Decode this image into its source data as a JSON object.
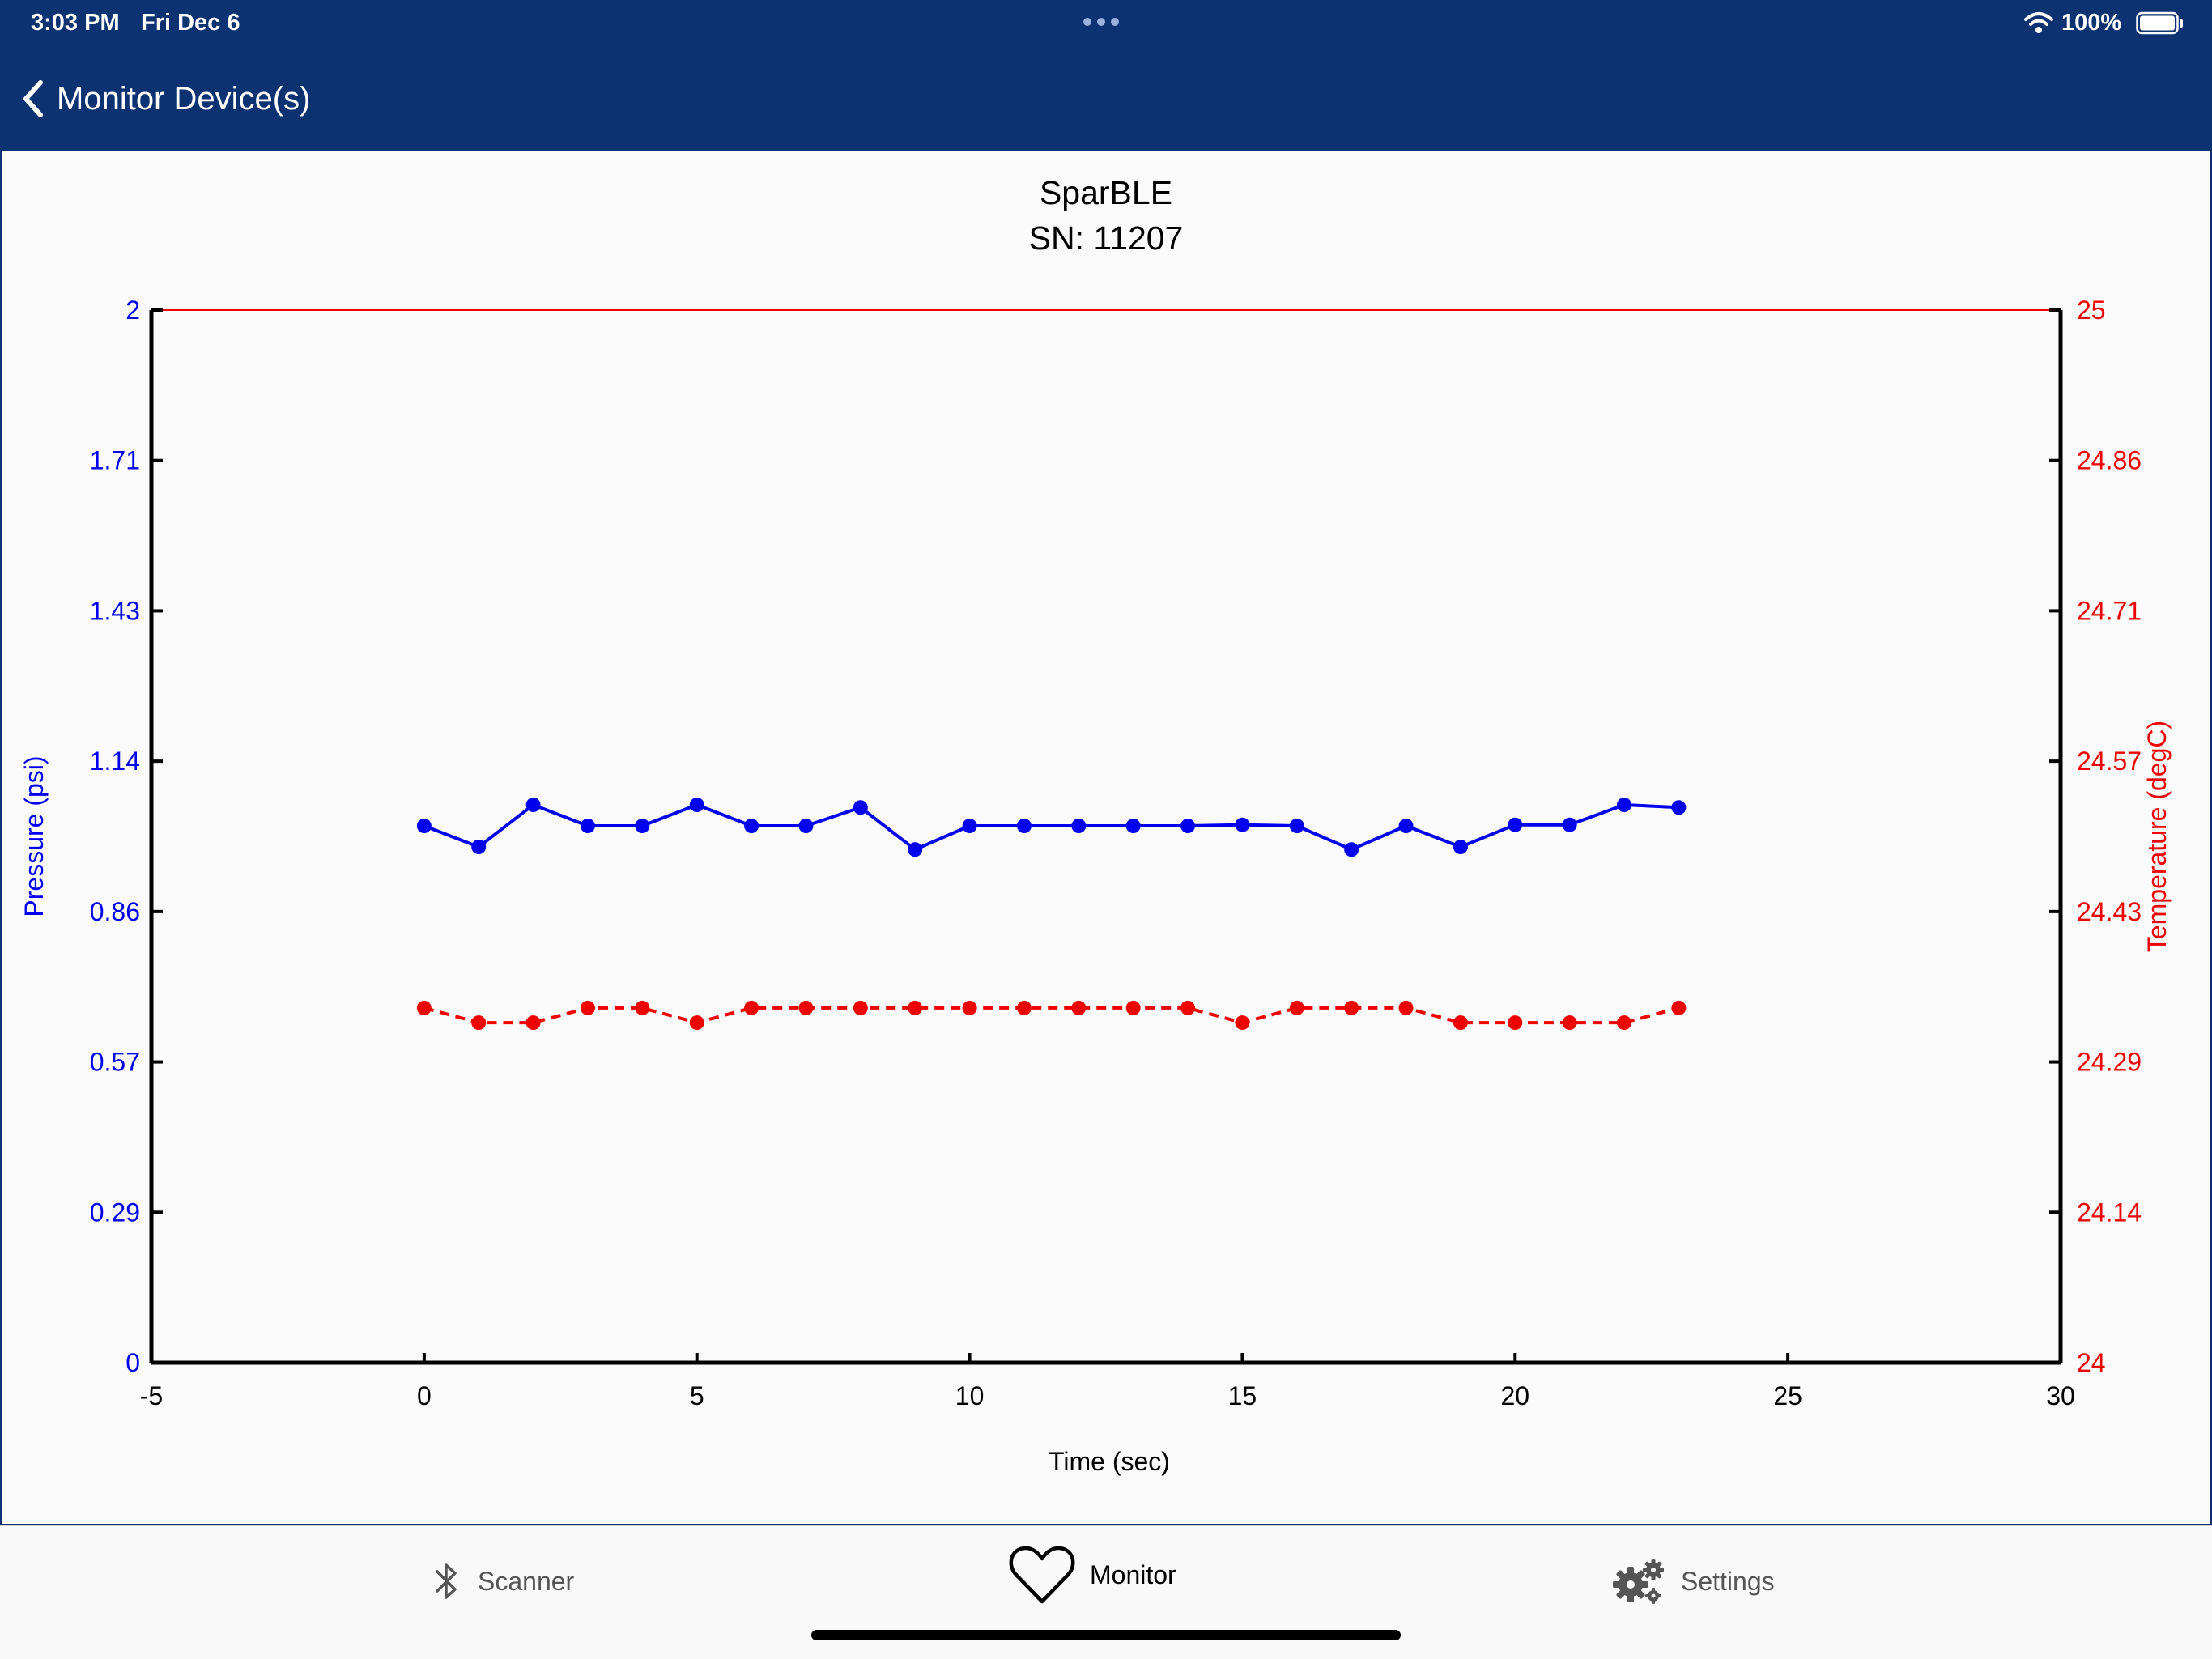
{
  "status_bar": {
    "time": "3:03 PM",
    "date": "Fri Dec 6",
    "battery": "100%"
  },
  "nav": {
    "back_label": "Monitor Device(s)"
  },
  "chart": {
    "title": "SparBLE",
    "subtitle": "SN: 11207"
  },
  "chart_data": {
    "type": "line",
    "title": "SparBLE",
    "subtitle": "SN: 11207",
    "xlabel": "Time (sec)",
    "ylabel_left": "Pressure (psi)",
    "ylabel_right": "Temperature (degC)",
    "xlim": [
      -5,
      30
    ],
    "x_ticks": [
      "-5",
      "0",
      "5",
      "10",
      "15",
      "20",
      "25",
      "30"
    ],
    "ylim_left": [
      0,
      2
    ],
    "ylim_right": [
      24,
      25
    ],
    "y_ticks_left": [
      "2",
      "1.71",
      "1.43",
      "1.14",
      "0.86",
      "0.57",
      "0.29",
      "0"
    ],
    "y_ticks_right": [
      "25",
      "24.86",
      "24.71",
      "24.57",
      "24.43",
      "24.29",
      "24.14",
      "24"
    ],
    "grid": false,
    "x": [
      0,
      1,
      2,
      3,
      4,
      5,
      6,
      7,
      8,
      9,
      10,
      11,
      12,
      13,
      14,
      15,
      16,
      17,
      18,
      19,
      20,
      21,
      22,
      23
    ],
    "series": [
      {
        "axis": "left",
        "color": "#0000ee",
        "style": "solid",
        "values": [
          1.02,
          0.98,
          1.06,
          1.02,
          1.02,
          1.06,
          1.02,
          1.02,
          1.055,
          0.975,
          1.02,
          1.02,
          1.02,
          1.02,
          1.02,
          1.022,
          1.02,
          0.975,
          1.02,
          0.98,
          1.022,
          1.022,
          1.06,
          1.055
        ]
      },
      {
        "axis": "right",
        "color": "#ee0000",
        "style": "dashed",
        "values": [
          24.337,
          24.323,
          24.323,
          24.337,
          24.337,
          24.323,
          24.337,
          24.337,
          24.337,
          24.337,
          24.337,
          24.337,
          24.337,
          24.337,
          24.337,
          24.323,
          24.337,
          24.337,
          24.337,
          24.323,
          24.323,
          24.323,
          24.323,
          24.337
        ]
      }
    ]
  },
  "tabs": [
    {
      "label": "Scanner",
      "icon": "bluetooth-icon"
    },
    {
      "label": "Monitor",
      "icon": "heart-icon",
      "selected": true
    },
    {
      "label": "Settings",
      "icon": "gears-icon"
    }
  ]
}
